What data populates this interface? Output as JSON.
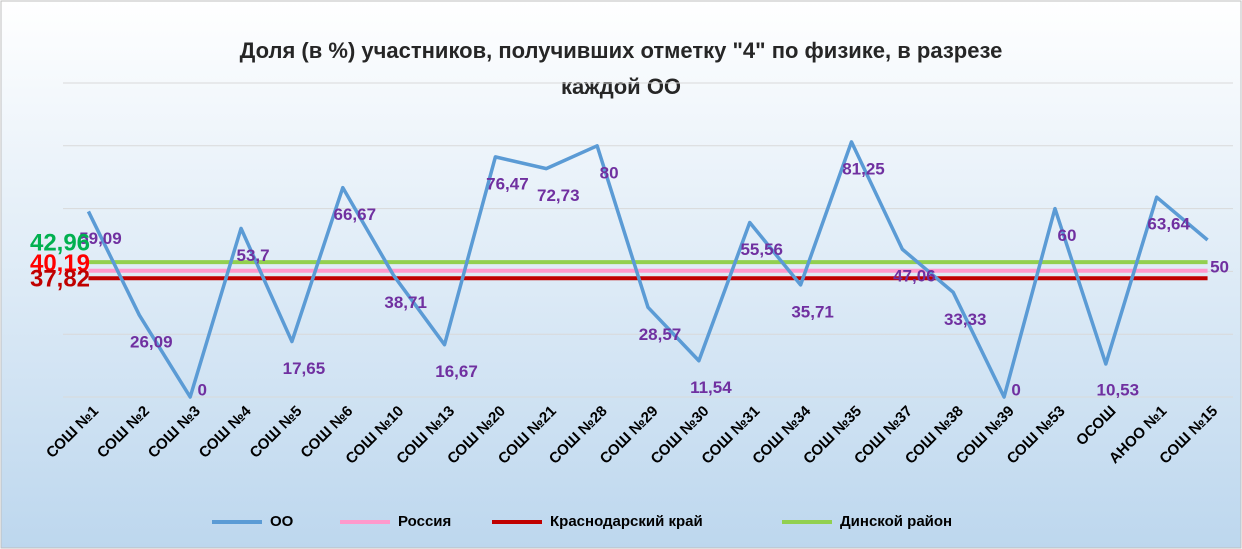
{
  "chart_data": {
    "type": "line",
    "title": [
      "Доля (в %) участников, получивших отметку \"4\" по физике, в разрезе",
      "каждой ОО"
    ],
    "categories": [
      "СОШ №1",
      "СОШ №2",
      "СОШ №3",
      "СОШ №4",
      "СОШ №5",
      "СОШ №6",
      "СОШ №10",
      "СОШ №13",
      "СОШ №20",
      "СОШ №21",
      "СОШ №28",
      "СОШ №29",
      "СОШ №30",
      "СОШ №31",
      "СОШ №34",
      "СОШ №35",
      "СОШ №37",
      "СОШ №38",
      "СОШ №39",
      "СОШ №53",
      "ОСОШ",
      "АНОО №1",
      "СОШ №15"
    ],
    "series": [
      {
        "name": "ОО",
        "color": "#5b9bd5",
        "values": [
          59.09,
          26.09,
          0,
          53.7,
          17.65,
          66.67,
          38.71,
          16.67,
          76.47,
          72.73,
          80,
          28.57,
          11.54,
          55.56,
          35.71,
          81.25,
          47.06,
          33.33,
          0,
          60,
          10.53,
          63.64,
          50
        ],
        "value_labels": [
          "59,09",
          "26,09",
          "0",
          "53,7",
          "17,65",
          "66,67",
          "38,71",
          "16,67",
          "76,47",
          "72,73",
          "80",
          "28,57",
          "11,54",
          "55,56",
          "35,71",
          "81,25",
          "47,06",
          "33,33",
          "0",
          "60",
          "10,53",
          "63,64",
          "50"
        ]
      }
    ],
    "reference_lines": [
      {
        "name": "Россия",
        "color": "#ff99cc",
        "value": 40.19,
        "value_label": "40,19",
        "label_color": "#ff0000"
      },
      {
        "name": "Краснодарский край",
        "color": "#c00000",
        "value": 37.82,
        "value_label": "37,82",
        "label_color": "#c00000"
      },
      {
        "name": "Динской район",
        "color": "#92d050",
        "value": 42.96,
        "value_label": "42,96",
        "label_color": "#00b050"
      }
    ],
    "ylim": [
      0,
      100
    ],
    "yticks": [
      0,
      20,
      40,
      60,
      80,
      100
    ],
    "grid": true
  }
}
